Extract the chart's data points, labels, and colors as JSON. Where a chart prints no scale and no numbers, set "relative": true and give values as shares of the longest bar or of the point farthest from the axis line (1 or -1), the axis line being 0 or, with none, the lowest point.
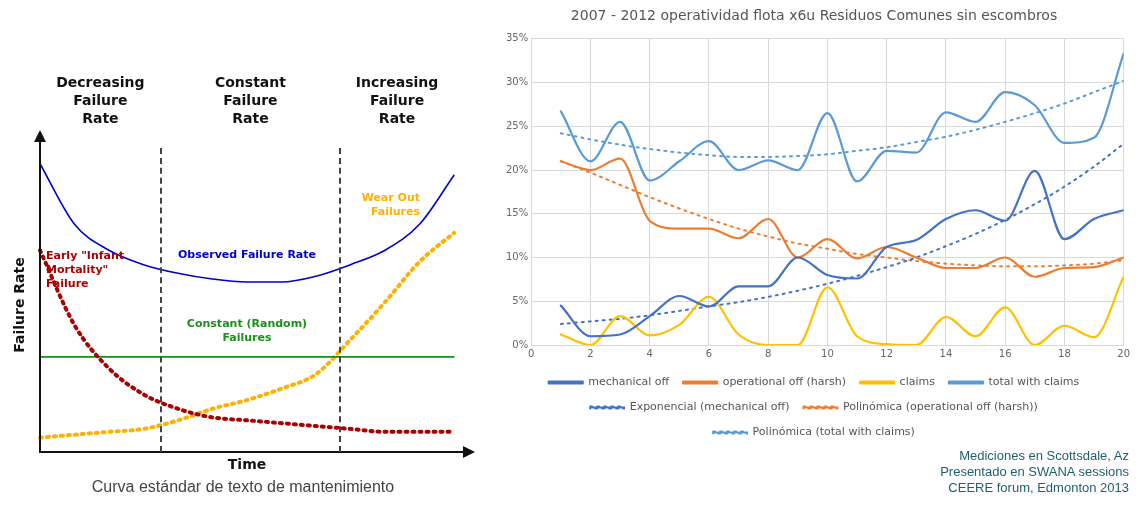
{
  "chart_data": [
    {
      "type": "line",
      "relative": true,
      "xlabel": "Time",
      "ylabel": "Failure Rate",
      "categories": [
        null,
        null,
        null,
        null,
        null,
        null,
        null,
        null,
        null,
        null,
        null,
        null,
        null
      ],
      "series": [
        {
          "name": "Observed Failure Rate",
          "color": "#0000cc",
          "line_style": "solid",
          "values": [
            1,
            0.79,
            0.7,
            0.65,
            0.62,
            0.6,
            0.59,
            0.59,
            0.61,
            0.65,
            0.7,
            0.79,
            0.96
          ]
        },
        {
          "name": "Early \"Infant Mortality\" Failure",
          "color": "#aa0000",
          "line_style": "dotted",
          "values": [
            0.7,
            0.44,
            0.29,
            0.2,
            0.15,
            0.12,
            0.11,
            0.1,
            0.09,
            0.08,
            0.07,
            0.07,
            0.07
          ]
        },
        {
          "name": "Constant (Random) Failures",
          "color": "#1a8f1a",
          "line_style": "solid",
          "values": [
            0.33,
            0.33,
            0.33,
            0.33,
            0.33,
            0.33,
            0.33,
            0.33,
            0.33,
            0.33,
            0.33,
            0.33,
            0.33
          ]
        },
        {
          "name": "Wear Out Failures",
          "color": "#ffb000",
          "line_style": "dotted",
          "values": [
            0.05,
            0.06,
            0.07,
            0.08,
            0.11,
            0.15,
            0.18,
            0.22,
            0.27,
            0.39,
            0.52,
            0.66,
            0.76
          ]
        }
      ],
      "annotations": [
        "Decreasing Failure Rate",
        "Constant Failure Rate",
        "Increasing Failure Rate",
        "Curva estándar de texto de mantenimiento"
      ],
      "legend": false,
      "grid": false
    },
    {
      "type": "line",
      "title": "2007 - 2012 operatividad flota x6u Residuos Comunes sin escombros",
      "x": [
        1,
        2,
        3,
        4,
        5,
        6,
        7,
        8,
        9,
        10,
        11,
        12,
        13,
        14,
        15,
        16,
        17,
        18,
        19,
        20
      ],
      "xlim": [
        0,
        20
      ],
      "xticks": [
        0,
        2,
        4,
        6,
        8,
        10,
        12,
        14,
        16,
        18,
        20
      ],
      "ylim": [
        0,
        35
      ],
      "yticks": [
        {
          "value": 0,
          "label": "0%"
        },
        {
          "value": 5,
          "label": "5%"
        },
        {
          "value": 10,
          "label": "10%"
        },
        {
          "value": 15,
          "label": "15%"
        },
        {
          "value": 20,
          "label": "20%"
        },
        {
          "value": 25,
          "label": "25%"
        },
        {
          "value": 30,
          "label": "30%"
        },
        {
          "value": 35,
          "label": "35%"
        }
      ],
      "series": [
        {
          "name": "mechanical off",
          "color": "#4472c4",
          "line_style": "solid",
          "values": [
            4.5,
            1.0,
            1.2,
            3.3,
            5.6,
            4.4,
            6.7,
            6.7,
            10.0,
            8.0,
            7.6,
            11.2,
            12.0,
            14.4,
            15.4,
            14.2,
            19.9,
            12.1,
            14.4,
            15.4
          ]
        },
        {
          "name": "operational off (harsh)",
          "color": "#ed7d31",
          "line_style": "solid",
          "values": [
            21.0,
            20.0,
            21.3,
            14.2,
            13.3,
            13.3,
            12.2,
            14.4,
            10.0,
            12.1,
            9.9,
            11.2,
            10.0,
            8.8,
            8.8,
            10.0,
            7.8,
            8.8,
            8.9,
            10.0
          ]
        },
        {
          "name": "claims",
          "color": "#ffc000",
          "line_style": "solid",
          "values": [
            1.2,
            0,
            3.3,
            1.1,
            2.3,
            5.5,
            1.2,
            0,
            0,
            6.6,
            1.0,
            0.1,
            0,
            3.2,
            1.0,
            4.3,
            0,
            2.2,
            0.9,
            7.8
          ]
        },
        {
          "name": "total with claims",
          "color": "#5b9bd5",
          "line_style": "solid",
          "values": [
            26.7,
            21.0,
            25.5,
            18.8,
            21.0,
            23.3,
            20.0,
            21.1,
            20.0,
            26.5,
            18.7,
            22.2,
            22.0,
            26.6,
            25.5,
            28.9,
            27.4,
            23.1,
            23.7,
            33.3
          ]
        },
        {
          "name": "Exponencial (mechanical off)",
          "color": "#4472c4",
          "line_style": "dotted",
          "values": [
            2.4,
            2.7,
            3.0,
            3.4,
            3.9,
            4.4,
            4.9,
            5.5,
            6.2,
            7.0,
            7.9,
            8.9,
            10.0,
            11.3,
            12.7,
            14.3,
            16.1,
            18.1,
            20.4,
            23.0
          ]
        },
        {
          "name": "Polinómica (operational off (harsh))",
          "color": "#ed7d31",
          "line_style": "dotted",
          "values": [
            21.0,
            19.7,
            18.3,
            16.9,
            15.6,
            14.4,
            13.3,
            12.4,
            11.6,
            11.0,
            10.4,
            10.0,
            9.6,
            9.3,
            9.1,
            9.0,
            9.0,
            9.1,
            9.3,
            9.7
          ]
        },
        {
          "name": "Polinómica (total with claims)",
          "color": "#5b9bd5",
          "line_style": "dotted",
          "values": [
            24.2,
            23.5,
            22.9,
            22.4,
            22.0,
            21.7,
            21.5,
            21.5,
            21.6,
            21.8,
            22.2,
            22.6,
            23.2,
            23.8,
            24.6,
            25.5,
            26.5,
            27.6,
            28.9,
            30.2
          ]
        }
      ],
      "annotations": [
        "Mediciones en Scottsdale, Az",
        "Presentado en SWANA sessions",
        "CEERE forum, Edmonton 2013"
      ],
      "legend": "bottom",
      "grid": true
    }
  ]
}
